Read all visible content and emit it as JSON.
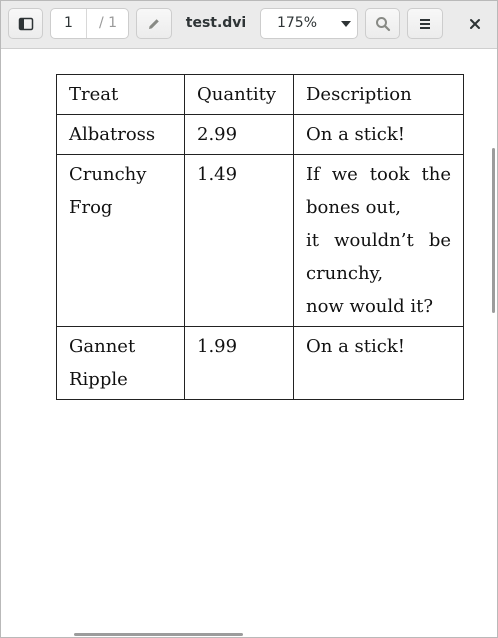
{
  "toolbar": {
    "page_current": "1",
    "page_total": "/ 1",
    "document_title": "test.dvi",
    "zoom": "175%",
    "icons": {
      "sidebar": "sidebar-toggle-icon",
      "annotate": "pencil-icon",
      "search": "search-icon",
      "menu": "hamburger-menu-icon",
      "close": "close-icon",
      "zoom_dropdown": "chevron-down-icon"
    }
  },
  "table": {
    "headers": [
      "Treat",
      "Quantity",
      "Description"
    ],
    "rows": [
      {
        "treat": [
          "Albatross"
        ],
        "quantity": "2.99",
        "description": [
          "On a stick!"
        ]
      },
      {
        "treat": [
          "Crunchy",
          "Frog"
        ],
        "quantity": "1.49",
        "description": [
          "If we took the",
          "bones out,",
          "it wouldn’t be",
          "crunchy,",
          "now would it?"
        ]
      },
      {
        "treat": [
          "Gannet",
          "Ripple"
        ],
        "quantity": "1.99",
        "description": [
          "On a stick!"
        ]
      }
    ]
  },
  "colors": {
    "toolbar_bg": "#ebebeb",
    "page_bg": "#ffffff",
    "scrollbar": "#9c9c9c",
    "text": "#2e3436"
  }
}
